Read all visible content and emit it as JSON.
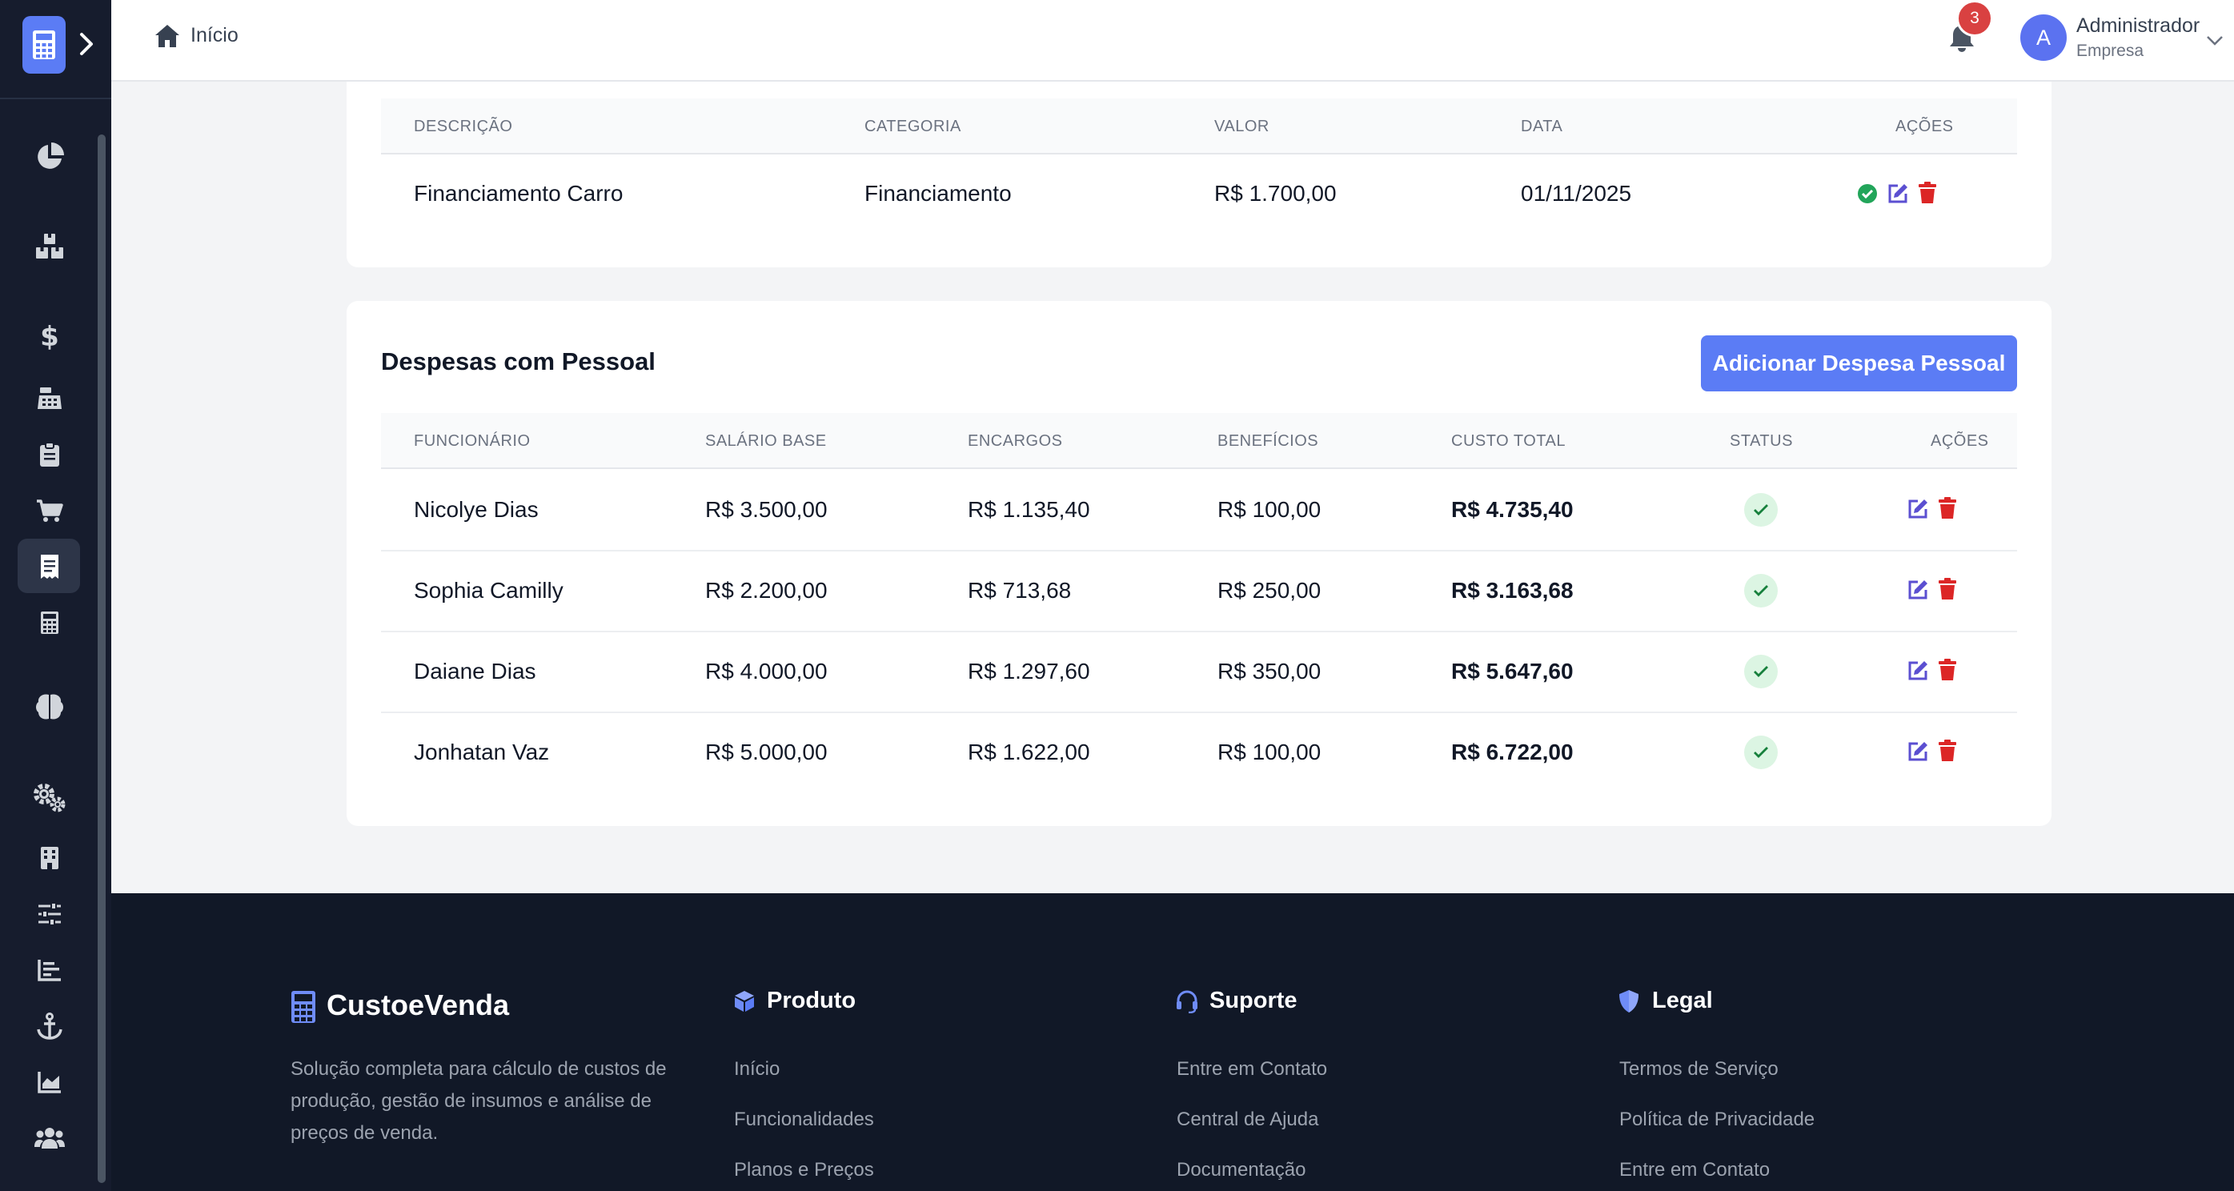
{
  "header": {
    "breadcrumb": "Início",
    "notifications_count": "3",
    "user": {
      "initial": "A",
      "name": "Administrador",
      "role": "Empresa"
    }
  },
  "financing_table": {
    "columns": [
      "DESCRIÇÃO",
      "CATEGORIA",
      "VALOR",
      "DATA",
      "AÇÕES"
    ],
    "rows": [
      {
        "descricao": "Financiamento Carro",
        "categoria": "Financiamento",
        "valor": "R$ 1.700,00",
        "data": "01/11/2025"
      }
    ]
  },
  "personnel": {
    "title": "Despesas com Pessoal",
    "add_button": "Adicionar Despesa Pessoal",
    "columns": [
      "FUNCIONÁRIO",
      "SALÁRIO BASE",
      "ENCARGOS",
      "BENEFÍCIOS",
      "CUSTO TOTAL",
      "STATUS",
      "AÇÕES"
    ],
    "rows": [
      {
        "funcionario": "Nicolye Dias",
        "salario": "R$ 3.500,00",
        "encargos": "R$ 1.135,40",
        "beneficios": "R$ 100,00",
        "total": "R$ 4.735,40"
      },
      {
        "funcionario": "Sophia Camilly",
        "salario": "R$ 2.200,00",
        "encargos": "R$ 713,68",
        "beneficios": "R$ 250,00",
        "total": "R$ 3.163,68"
      },
      {
        "funcionario": "Daiane Dias",
        "salario": "R$ 4.000,00",
        "encargos": "R$ 1.297,60",
        "beneficios": "R$ 350,00",
        "total": "R$ 5.647,60"
      },
      {
        "funcionario": "Jonhatan Vaz",
        "salario": "R$ 5.000,00",
        "encargos": "R$ 1.622,00",
        "beneficios": "R$ 100,00",
        "total": "R$ 6.722,00"
      }
    ]
  },
  "footer": {
    "brand": "CustoeVenda",
    "description": "Solução completa para cálculo de custos de produção, gestão de insumos e análise de preços de venda.",
    "produto": {
      "title": "Produto",
      "links": [
        "Início",
        "Funcionalidades",
        "Planos e Preços"
      ]
    },
    "suporte": {
      "title": "Suporte",
      "links": [
        "Entre em Contato",
        "Central de Ajuda",
        "Documentação"
      ]
    },
    "legal": {
      "title": "Legal",
      "links": [
        "Termos de Serviço",
        "Política de Privacidade",
        "Entre em Contato"
      ]
    }
  },
  "colors": {
    "sidebar_bg": "#161c2d",
    "accent": "#5b7cf5",
    "footer_bg": "#111827",
    "danger": "#d94141",
    "success": "#22a55a",
    "edit": "#5b4fd1"
  },
  "icons": {
    "sidebar": [
      "chart-pie-icon",
      "boxes-icon",
      "dollar-icon",
      "cash-register-icon",
      "clipboard-icon",
      "cart-icon",
      "receipt-icon",
      "calculator-icon",
      "brain-icon",
      "cogs-icon",
      "building-icon",
      "sliders-icon",
      "bar-chart-icon",
      "anchor-icon",
      "area-chart-icon",
      "users-icon"
    ]
  }
}
